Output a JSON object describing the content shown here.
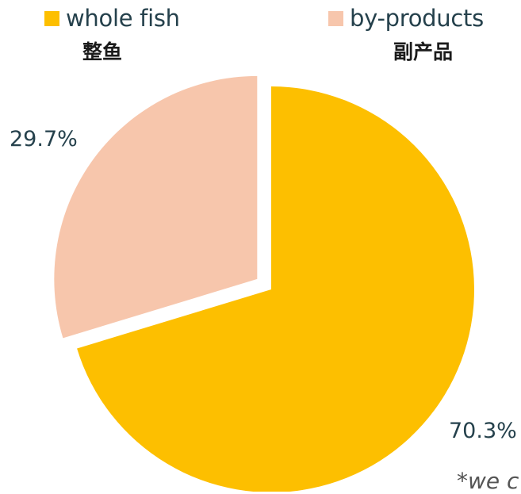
{
  "legend": {
    "items": [
      {
        "label": "whole fish",
        "color": "#fdbf00"
      },
      {
        "label": "by-products",
        "color": "#f7c6ac"
      }
    ]
  },
  "labels_cn": {
    "whole_fish": "整鱼",
    "by_products": "副产品"
  },
  "footnote": "*we c",
  "chart_data": {
    "type": "pie",
    "categories": [
      "whole fish",
      "by-products"
    ],
    "values": [
      70.3,
      29.7
    ],
    "data_labels": [
      "70.3%",
      "29.7%"
    ],
    "colors": [
      "#fdbf00",
      "#f7c6ac"
    ],
    "exploded": "by-products",
    "legend_position": "top"
  }
}
